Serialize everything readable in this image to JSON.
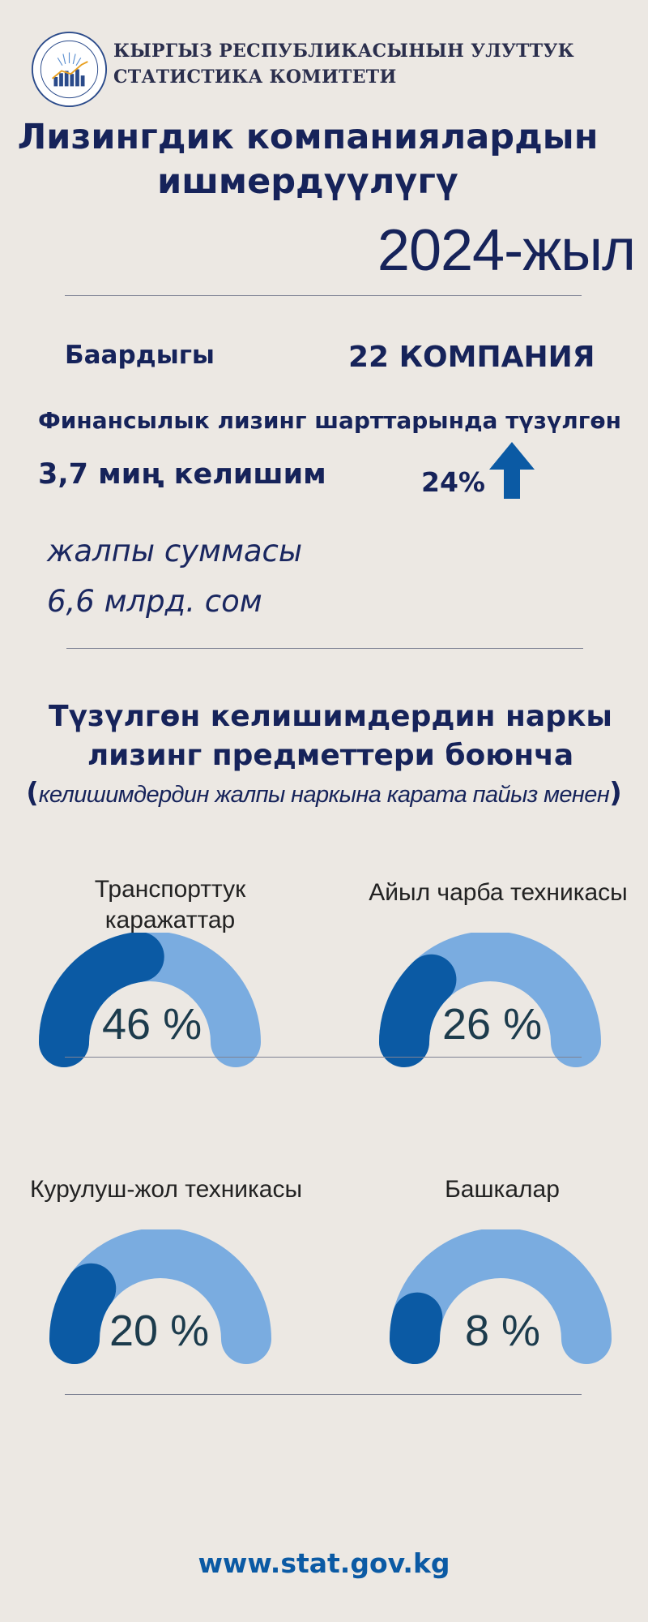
{
  "header": {
    "org_line1": "КЫРГЫЗ РЕСПУБЛИКАСЫНЫН УЛУТТУК",
    "org_line2": "СТАТИСТИКА КОМИТЕТИ",
    "logo_icon": "statistics-committee-logo"
  },
  "title": {
    "line1": "Лизингдик компаниялардын",
    "line2": "ишмердүүлүгү",
    "year": "2024-жыл"
  },
  "summary": {
    "total_label": "Баардыгы",
    "total_value": "22 КОМПАНИЯ",
    "finance_label": "Финансылык лизинг шарттарында түзүлгөн",
    "contracts": "3,7 миң келишим",
    "growth": "24%",
    "growth_icon": "arrow-up-icon",
    "sum_label": "жалпы суммасы",
    "sum_value": "6,6 млрд. сом"
  },
  "section": {
    "title_line1": "Түзүлгөн келишимдердин наркы",
    "title_line2": "лизинг предметтери боюнча",
    "note_open": "(",
    "note": "келишимдердин жалпы наркына карата пайыз менен",
    "note_close": ")"
  },
  "chart_data": {
    "type": "gauge",
    "colors": {
      "filled": "#0b5aa4",
      "track": "#7aace0"
    },
    "items": [
      {
        "label_line1": "Транспорттук",
        "label_line2": "каражаттар",
        "value": 46,
        "value_label": "46 %"
      },
      {
        "label_line1": "Айыл чарба техникасы",
        "label_line2": "",
        "value": 26,
        "value_label": "26 %"
      },
      {
        "label_line1": "Курулуш-жол техникасы",
        "label_line2": "",
        "value": 20,
        "value_label": "20 %"
      },
      {
        "label_line1": "Башкалар",
        "label_line2": "",
        "value": 8,
        "value_label": "8 %"
      }
    ]
  },
  "footer": {
    "url": "www.stat.gov.kg"
  },
  "colors": {
    "background": "#ece8e3",
    "navy": "#16235a",
    "accent_blue": "#0b5aa4",
    "light_blue": "#7aace0"
  }
}
